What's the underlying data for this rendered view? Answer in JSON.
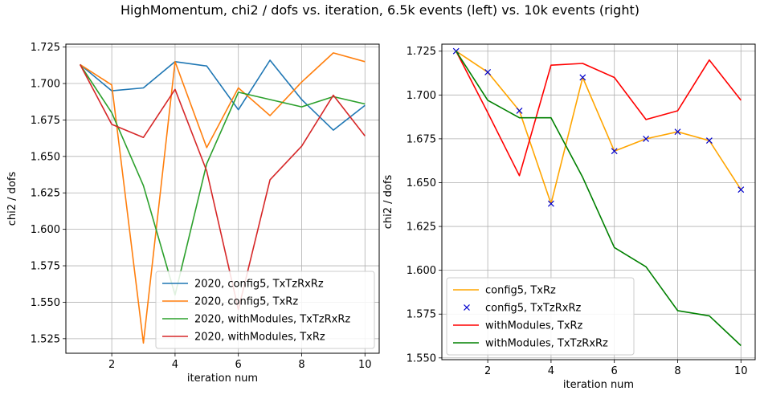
{
  "figure": {
    "title": "HighMomentum, chi2 / dofs vs. iteration, 6.5k events (left) vs. 10k events (right)"
  },
  "chart_data": [
    {
      "type": "line",
      "xlabel": "iteration num",
      "ylabel": "chi2 / dofs",
      "xlim": [
        0.55,
        10.45
      ],
      "ylim": [
        1.515,
        1.727
      ],
      "xticks": [
        2,
        4,
        6,
        8,
        10
      ],
      "yticks": [
        1.525,
        1.55,
        1.575,
        1.6,
        1.625,
        1.65,
        1.675,
        1.7,
        1.725
      ],
      "grid": true,
      "legend_position": "lower-right",
      "x": [
        1,
        2,
        3,
        4,
        5,
        6,
        7,
        8,
        9,
        10
      ],
      "series": [
        {
          "name": "2020, config5, TxTzRxRz",
          "color": "#1f77b4",
          "style": "line",
          "values": [
            1.713,
            1.695,
            1.697,
            1.715,
            1.712,
            1.682,
            1.716,
            1.689,
            1.668,
            1.685
          ]
        },
        {
          "name": "2020, config5, TxRz",
          "color": "#ff7f0e",
          "style": "line",
          "values": [
            1.713,
            1.699,
            1.522,
            1.715,
            1.656,
            1.697,
            1.678,
            1.701,
            1.721,
            1.715
          ]
        },
        {
          "name": "2020, withModules, TxTzRxRz",
          "color": "#2ca02c",
          "style": "line",
          "values": [
            1.713,
            1.68,
            1.63,
            1.555,
            1.645,
            1.694,
            1.689,
            1.684,
            1.691,
            1.686
          ]
        },
        {
          "name": "2020, withModules, TxRz",
          "color": "#d62728",
          "style": "line",
          "values": [
            1.713,
            1.672,
            1.663,
            1.696,
            1.64,
            1.545,
            1.634,
            1.657,
            1.692,
            1.664
          ]
        }
      ]
    },
    {
      "type": "line",
      "xlabel": "iteration num",
      "ylabel": "chi2 / dofs",
      "xlim": [
        0.55,
        10.45
      ],
      "ylim": [
        1.549,
        1.729
      ],
      "xticks": [
        2,
        4,
        6,
        8,
        10
      ],
      "yticks": [
        1.55,
        1.575,
        1.6,
        1.625,
        1.65,
        1.675,
        1.7,
        1.725
      ],
      "grid": true,
      "legend_position": "lower-left",
      "x": [
        1,
        2,
        3,
        4,
        5,
        6,
        7,
        8,
        9,
        10
      ],
      "series": [
        {
          "name": "config5, TxRz",
          "color": "#ffa500",
          "style": "line",
          "values": [
            1.725,
            1.713,
            1.691,
            1.638,
            1.71,
            1.668,
            1.675,
            1.679,
            1.674,
            1.646
          ]
        },
        {
          "name": "config5, TxTzRxRz",
          "color": "#0000cd",
          "style": "x-markers",
          "values": [
            1.725,
            1.713,
            1.691,
            1.638,
            1.71,
            1.668,
            1.675,
            1.679,
            1.674,
            1.646
          ]
        },
        {
          "name": "withModules, TxRz",
          "color": "#ff0000",
          "style": "line",
          "values": [
            1.725,
            1.69,
            1.654,
            1.717,
            1.718,
            1.71,
            1.686,
            1.691,
            1.72,
            1.697
          ]
        },
        {
          "name": "withModules, TxTzRxRz",
          "color": "#008000",
          "style": "line",
          "values": [
            1.725,
            1.697,
            1.687,
            1.687,
            1.653,
            1.613,
            1.602,
            1.577,
            1.574,
            1.557
          ]
        }
      ]
    }
  ]
}
